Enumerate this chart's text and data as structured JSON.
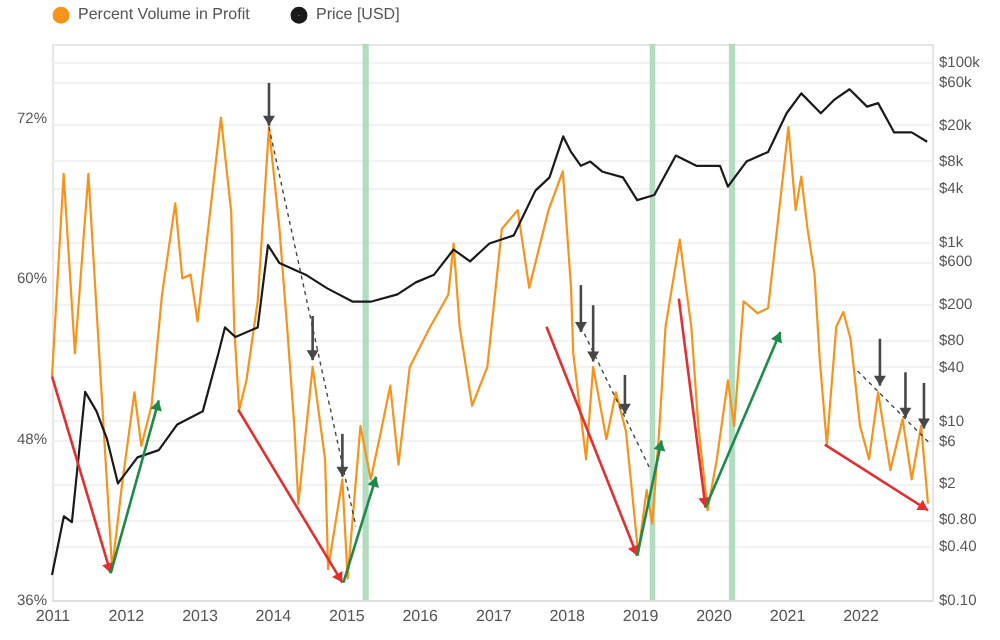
{
  "chart_data": {
    "type": "line",
    "xlim": [
      "2011-01-01",
      "2022-12-25"
    ],
    "xticks": [
      "2011",
      "2012",
      "2013",
      "2014",
      "2015",
      "2016",
      "2017",
      "2018",
      "2019",
      "2020",
      "2021",
      "2022"
    ],
    "ylim": [
      36,
      77.5
    ],
    "yticks": [
      {
        "value": 36,
        "label": "36%"
      },
      {
        "value": 48,
        "label": "48%"
      },
      {
        "value": 60,
        "label": "60%"
      },
      {
        "value": 72,
        "label": "72%"
      }
    ],
    "y2lim": [
      0.1,
      160000
    ],
    "y2ticks": [
      {
        "value": 0.1,
        "label": "$0.10"
      },
      {
        "value": 0.4,
        "label": "$0.40"
      },
      {
        "value": 0.8,
        "label": "$0.80"
      },
      {
        "value": 2,
        "label": "$2"
      },
      {
        "value": 6,
        "label": "$6"
      },
      {
        "value": 10,
        "label": "$10"
      },
      {
        "value": 40,
        "label": "$40"
      },
      {
        "value": 80,
        "label": "$80"
      },
      {
        "value": 200,
        "label": "$200"
      },
      {
        "value": 600,
        "label": "$600"
      },
      {
        "value": 1000,
        "label": "$1k"
      },
      {
        "value": 4000,
        "label": "$4k"
      },
      {
        "value": 8000,
        "label": "$8k"
      },
      {
        "value": 20000,
        "label": "$20k"
      },
      {
        "value": 60000,
        "label": "$60k"
      },
      {
        "value": 100000,
        "label": "$100k"
      }
    ],
    "log": "y2",
    "grid": "y",
    "legend": "top left",
    "bands": [
      {
        "axis": "x",
        "from": "2015-03-25",
        "to": "2015-04-25",
        "color": "#a8d8b9"
      },
      {
        "axis": "x",
        "from": "2019-02-20",
        "to": "2019-03-20",
        "color": "#a8d8b9"
      },
      {
        "axis": "x",
        "from": "2020-03-20",
        "to": "2020-04-20",
        "color": "#a8d8b9"
      }
    ],
    "series": [
      {
        "name": "Percent Volume in Profit",
        "color": "#f7931a",
        "x": [
          "2011-01-01",
          "2011-02-28",
          "2011-04-25",
          "2011-07-01",
          "2011-10-27",
          "2011-12-15",
          "2012-02-15",
          "2012-03-20",
          "2012-05-10",
          "2012-07-01",
          "2012-09-05",
          "2012-10-10",
          "2012-11-20",
          "2012-12-25",
          "2013-04-20",
          "2013-06-10",
          "2013-06-25",
          "2013-07-20",
          "2013-08-25",
          "2013-10-20",
          "2013-12-15",
          "2014-02-05",
          "2014-03-15",
          "2014-04-20",
          "2014-05-10",
          "2014-07-20",
          "2014-09-20",
          "2014-10-05",
          "2014-12-15",
          "2015-01-10",
          "2015-03-15",
          "2015-05-05",
          "2015-06-25",
          "2015-08-10",
          "2015-09-20",
          "2015-11-15",
          "2016-02-25",
          "2016-05-25",
          "2016-06-20",
          "2016-07-20",
          "2016-09-20",
          "2016-12-05",
          "2017-02-15",
          "2017-05-05",
          "2017-07-01",
          "2017-10-05",
          "2017-12-15",
          "2018-01-25",
          "2018-02-05",
          "2018-04-10",
          "2018-05-15",
          "2018-07-20",
          "2018-09-05",
          "2018-10-25",
          "2018-12-25",
          "2019-02-05",
          "2019-03-05",
          "2019-04-10",
          "2019-05-10",
          "2019-07-20",
          "2019-08-20",
          "2019-09-15",
          "2019-10-20",
          "2019-12-05",
          "2020-01-20",
          "2020-03-15",
          "2020-04-15",
          "2020-06-01",
          "2020-08-10",
          "2020-10-01",
          "2020-11-25",
          "2021-01-10",
          "2021-02-15",
          "2021-03-15",
          "2021-04-15",
          "2021-05-20",
          "2021-06-15",
          "2021-07-20",
          "2021-09-05",
          "2021-10-10",
          "2021-11-15",
          "2022-01-01",
          "2022-02-15",
          "2022-04-01",
          "2022-06-01",
          "2022-08-01",
          "2022-09-15",
          "2022-11-01",
          "2022-12-05"
        ],
        "values": [
          52.7,
          67.8,
          54.4,
          67.8,
          38.3,
          44.6,
          51.5,
          47.5,
          50.5,
          58.8,
          65.6,
          60,
          60.3,
          56.8,
          72,
          65,
          56.4,
          50.2,
          52.4,
          58.3,
          71.3,
          63.7,
          56.4,
          49,
          43.2,
          53.4,
          46.5,
          38.3,
          45,
          37.6,
          49,
          45,
          48.6,
          52,
          46.1,
          53.4,
          56.4,
          58.8,
          62.6,
          56.4,
          50.5,
          53.4,
          63.7,
          65.1,
          59.3,
          65.1,
          68,
          59.3,
          54.4,
          46.5,
          53.4,
          48,
          51.5,
          48.6,
          39.5,
          44.2,
          41.7,
          49,
          56.4,
          62.9,
          59.3,
          56.4,
          49,
          42.7,
          46.5,
          52.4,
          49,
          58.3,
          57.4,
          57.8,
          65.1,
          71.3,
          65.1,
          67.6,
          63.7,
          60.3,
          53.9,
          47.6,
          56.4,
          57.5,
          55.5,
          49,
          46.5,
          51.5,
          45.7,
          49.5,
          45,
          49,
          43.2
        ]
      },
      {
        "name": "Price [USD]",
        "color": "#1a1a1a",
        "axis": "y2",
        "x": [
          "2011-01-01",
          "2011-03-01",
          "2011-04-10",
          "2011-06-15",
          "2011-08-10",
          "2011-10-01",
          "2011-11-25",
          "2012-03-01",
          "2012-06-15",
          "2012-09-15",
          "2013-01-20",
          "2013-04-08",
          "2013-05-10",
          "2013-07-01",
          "2013-10-20",
          "2013-12-10",
          "2014-02-05",
          "2014-06-15",
          "2014-10-01",
          "2015-02-05",
          "2015-05-05",
          "2015-09-15",
          "2015-12-15",
          "2016-03-15",
          "2016-06-20",
          "2016-09-10",
          "2016-12-15",
          "2017-04-15",
          "2017-08-01",
          "2017-10-10",
          "2017-12-17",
          "2018-01-25",
          "2018-03-15",
          "2018-05-01",
          "2018-07-01",
          "2018-10-10",
          "2018-12-20",
          "2019-03-15",
          "2019-06-30",
          "2019-10-10",
          "2020-02-05",
          "2020-03-15",
          "2020-06-15",
          "2020-10-01",
          "2021-01-01",
          "2021-03-15",
          "2021-06-20",
          "2021-08-25",
          "2021-11-10",
          "2022-02-05",
          "2022-04-01",
          "2022-06-20",
          "2022-09-15",
          "2022-12-01"
        ],
        "values": [
          0.19,
          0.86,
          0.74,
          21,
          12.8,
          6.3,
          2,
          3.9,
          4.7,
          9.1,
          12.8,
          57,
          110,
          86,
          110,
          910,
          575,
          427,
          300,
          213,
          213,
          257,
          350,
          427,
          814,
          600,
          950,
          1170,
          3700,
          5200,
          14900,
          10000,
          7000,
          7800,
          6000,
          5200,
          2900,
          3300,
          9100,
          7000,
          7000,
          4100,
          7800,
          10000,
          27000,
          45000,
          27000,
          38000,
          50000,
          32000,
          35000,
          16500,
          16500,
          13000
        ]
      }
    ]
  }
}
